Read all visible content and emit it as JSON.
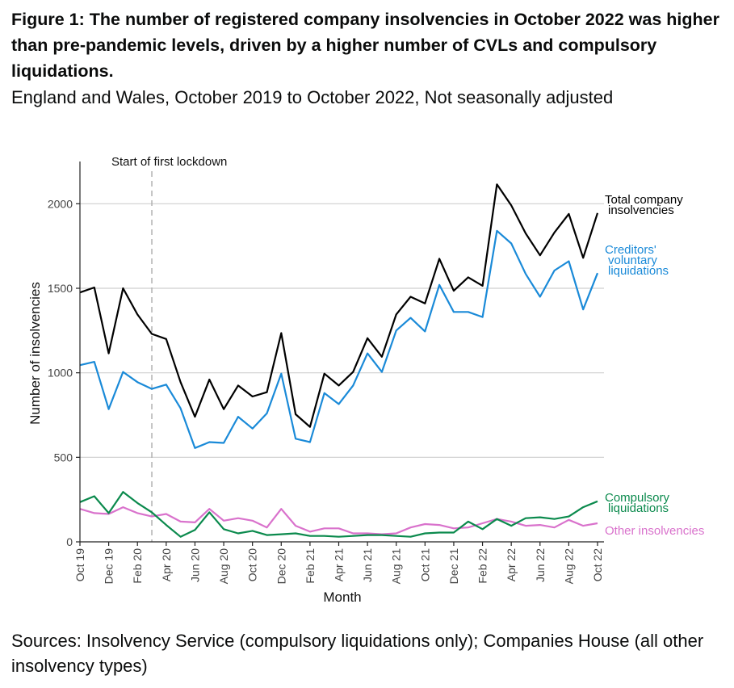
{
  "title": "Figure 1: The number of registered company insolvencies in October 2022 was higher than pre-pandemic levels, driven by a higher number of CVLs and compulsory liquidations.",
  "subtitle": "England and Wales, October 2019 to October 2022, Not seasonally adjusted",
  "source": "Sources: Insolvency Service (compulsory liquidations only); Companies House (all other insolvency types)",
  "chart_data": {
    "type": "line",
    "xlabel": "Month",
    "ylabel": "Number of insolvencies",
    "ylim": [
      0,
      2250
    ],
    "yticks": [
      0,
      500,
      1000,
      1500,
      2000
    ],
    "grid": "horizontal",
    "x": [
      "Oct 19",
      "Nov 19",
      "Dec 19",
      "Jan 20",
      "Feb 20",
      "Mar 20",
      "Apr 20",
      "May 20",
      "Jun 20",
      "Jul 20",
      "Aug 20",
      "Sep 20",
      "Oct 20",
      "Nov 20",
      "Dec 20",
      "Jan 21",
      "Feb 21",
      "Mar 21",
      "Apr 21",
      "May 21",
      "Jun 21",
      "Jul 21",
      "Aug 21",
      "Sep 21",
      "Oct 21",
      "Nov 21",
      "Dec 21",
      "Jan 22",
      "Feb 22",
      "Mar 22",
      "Apr 22",
      "May 22",
      "Jun 22",
      "Jul 22",
      "Aug 22",
      "Sep 22",
      "Oct 22"
    ],
    "xtick_labels": [
      "Oct 19",
      "Dec 19",
      "Feb 20",
      "Apr 20",
      "Jun 20",
      "Aug 20",
      "Oct 20",
      "Dec 20",
      "Feb 21",
      "Apr 21",
      "Jun 21",
      "Aug 21",
      "Oct 21",
      "Dec 21",
      "Feb 22",
      "Apr 22",
      "Jun 22",
      "Aug 22",
      "Oct 22"
    ],
    "annotation": {
      "text": "Start of first lockdown",
      "x": "Mar 20"
    },
    "series": [
      {
        "name": "Total company insolvencies",
        "label_lines": [
          "Total company",
          "insolvencies"
        ],
        "color": "#000000",
        "values": [
          1475,
          1505,
          1115,
          1500,
          1345,
          1230,
          1200,
          945,
          740,
          960,
          785,
          925,
          860,
          885,
          1235,
          755,
          680,
          995,
          925,
          1005,
          1205,
          1095,
          1345,
          1450,
          1410,
          1675,
          1485,
          1565,
          1515,
          2115,
          1990,
          1825,
          1695,
          1830,
          1940,
          1680,
          1945
        ]
      },
      {
        "name": "Creditors' voluntary liquidations",
        "label_lines": [
          "Creditors'",
          "voluntary",
          "liquidations"
        ],
        "color": "#1a8ad8",
        "values": [
          1045,
          1065,
          785,
          1005,
          945,
          905,
          930,
          790,
          555,
          590,
          585,
          740,
          670,
          760,
          995,
          610,
          590,
          880,
          815,
          925,
          1115,
          1005,
          1250,
          1325,
          1245,
          1520,
          1360,
          1360,
          1330,
          1840,
          1765,
          1585,
          1450,
          1605,
          1660,
          1375,
          1590
        ]
      },
      {
        "name": "Compulsory liquidations",
        "label_lines": [
          "Compulsory",
          "liquidations"
        ],
        "color": "#0b8a4d",
        "values": [
          235,
          270,
          170,
          295,
          230,
          175,
          100,
          30,
          70,
          175,
          75,
          50,
          65,
          40,
          45,
          50,
          35,
          35,
          30,
          35,
          40,
          40,
          35,
          30,
          50,
          55,
          55,
          120,
          75,
          135,
          95,
          140,
          145,
          135,
          150,
          205,
          240
        ]
      },
      {
        "name": "Other insolvencies",
        "label_lines": [
          "Other insolvencies"
        ],
        "color": "#d972cc",
        "values": [
          195,
          170,
          165,
          205,
          170,
          150,
          165,
          120,
          115,
          195,
          125,
          140,
          125,
          85,
          195,
          95,
          60,
          80,
          80,
          50,
          50,
          45,
          50,
          85,
          105,
          100,
          80,
          85,
          110,
          135,
          120,
          95,
          100,
          85,
          130,
          95,
          110
        ]
      }
    ]
  }
}
